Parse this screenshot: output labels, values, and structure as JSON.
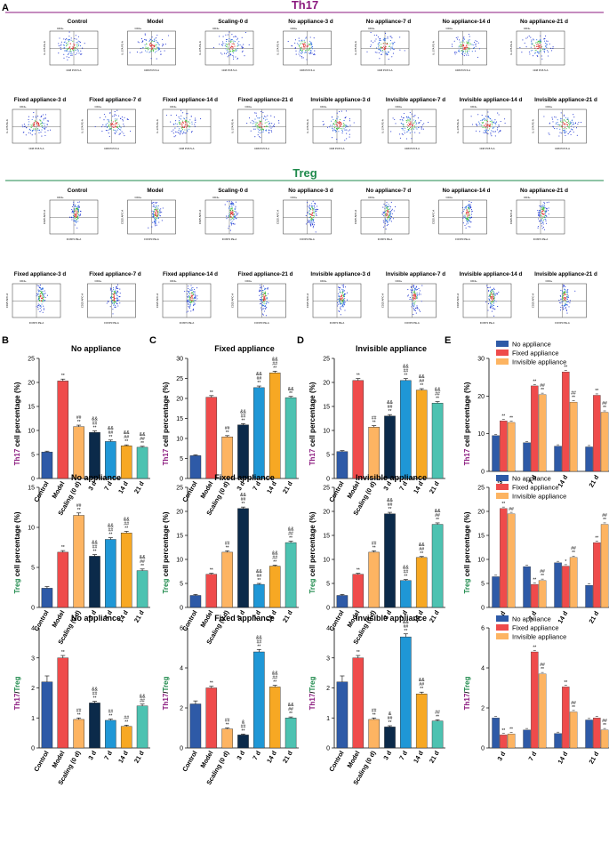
{
  "figure": {
    "panel_letters": [
      "A",
      "B",
      "C",
      "D",
      "E"
    ],
    "flow_sections": [
      {
        "title": "Th17",
        "title_color": "#8b1a7f",
        "row1": [
          "Control",
          "Model",
          "Scaling-0 d",
          "No appliance-3 d",
          "No appliance-7 d",
          "No appliance-14 d",
          "No appliance-21 d"
        ],
        "row2": [
          "Fixed appliance-3 d",
          "Fixed appliance-7 d",
          "Fixed appliance-14 d",
          "Fixed appliance-21 d",
          "Invisible appliance-3 d",
          "Invisible appliance-7 d",
          "Invisible appliance-14 d",
          "Invisible appliance-21 d"
        ],
        "gate": "CD4+",
        "xlabel": "CD8 PC5.5-A",
        "ylabel": "IL-17A PE-A"
      },
      {
        "title": "Treg",
        "title_color": "#1f8a4c",
        "row1": [
          "Control",
          "Model",
          "Scaling-0 d",
          "No appliance-3 d",
          "No appliance-7 d",
          "No appliance-14 d",
          "No appliance-21 d"
        ],
        "row2": [
          "Fixed appliance-3 d",
          "Fixed appliance-7 d",
          "Fixed appliance-14 d",
          "Fixed appliance-21 d",
          "Invisible appliance-3 d",
          "Invisible appliance-7 d",
          "Invisible appliance-14 d",
          "Invisible appliance-21 d"
        ],
        "gate": "CD4+",
        "xlabel": "FOXP3 PE-A",
        "ylabel": "CD25 APC-A"
      }
    ],
    "colors": {
      "control": "#2e5aa7",
      "model": "#ef4b4b",
      "scaling": "#fdb462",
      "d3": "#0b2a4a",
      "d7": "#1f97d6",
      "d14": "#f7a823",
      "d21": "#4dc2b1",
      "th17_color": "#8b1a7f",
      "treg_color": "#1f8a4c"
    },
    "categories": [
      "Control",
      "Model",
      "Scaling (0 d)",
      "3 d",
      "7 d",
      "14 d",
      "21 d"
    ],
    "row_ylabels": [
      {
        "prefix": "Th17",
        "suffix": " cell percentage (%)"
      },
      {
        "prefix": "Treg",
        "suffix": " cell percentage (%)"
      },
      {
        "prefix": "Th17",
        "sep": "/",
        "suffix2": "Treg"
      }
    ],
    "legend_E": [
      "No appliance",
      "Fixed appliance",
      "Invisible appliance"
    ]
  },
  "chart_data": [
    {
      "id": "B1",
      "type": "bar",
      "title": "No appliance",
      "ylabel": "Th17 cell percentage (%)",
      "categories": [
        "Control",
        "Model",
        "Scaling (0 d)",
        "3 d",
        "7 d",
        "14 d",
        "21 d"
      ],
      "values": [
        5.5,
        20.3,
        10.8,
        9.6,
        7.7,
        6.8,
        6.5
      ],
      "errors": [
        0.2,
        0.4,
        0.3,
        0.3,
        0.3,
        0.2,
        0.2
      ],
      "ylim": [
        0,
        25
      ],
      "yticks": [
        0,
        5,
        10,
        15,
        20,
        25
      ],
      "annotations": [
        "",
        "**",
        "##\n**",
        "&&\n##\n**",
        "&&\n##\n**",
        "&&\n##\n**",
        "&&\n##\n**"
      ]
    },
    {
      "id": "C1",
      "type": "bar",
      "title": "Fixed appliance",
      "ylabel": "Th17 cell percentage (%)",
      "categories": [
        "Control",
        "Model",
        "Scaling (0 d)",
        "3 d",
        "7 d",
        "14 d",
        "21 d"
      ],
      "values": [
        5.7,
        20.3,
        10.4,
        13.4,
        22.7,
        26.4,
        20.2
      ],
      "errors": [
        0.2,
        0.4,
        0.3,
        0.3,
        0.4,
        0.4,
        0.3
      ],
      "ylim": [
        0,
        30
      ],
      "yticks": [
        0,
        5,
        10,
        15,
        20,
        25,
        30
      ],
      "annotations": [
        "",
        "**",
        "##\n**",
        "&&\n##\n**",
        "&&\n##\n**",
        "&&\n##\n**",
        "&&\n**"
      ]
    },
    {
      "id": "D1",
      "type": "bar",
      "title": "Invisible appliance",
      "ylabel": "Th17 cell percentage (%)",
      "categories": [
        "Control",
        "Model",
        "Scaling (0 d)",
        "3 d",
        "7 d",
        "14 d",
        "21 d"
      ],
      "values": [
        5.6,
        20.4,
        10.7,
        13.0,
        20.4,
        18.4,
        15.7
      ],
      "errors": [
        0.2,
        0.4,
        0.3,
        0.3,
        0.4,
        0.3,
        0.3
      ],
      "ylim": [
        0,
        25
      ],
      "yticks": [
        0,
        5,
        10,
        15,
        20,
        25
      ],
      "annotations": [
        "",
        "**",
        "##\n**",
        "&&\n##\n**",
        "&&\n##\n**",
        "&&\n##\n**",
        "&&\n##\n**"
      ]
    },
    {
      "id": "E1",
      "type": "bar",
      "ylabel": "Th17 cell percentage (%)",
      "categories": [
        "3 d",
        "7 d",
        "14 d",
        "21 d"
      ],
      "series": [
        {
          "name": "No appliance",
          "values": [
            9.5,
            7.6,
            6.7,
            6.5
          ],
          "annotations": [
            "",
            "",
            "",
            ""
          ]
        },
        {
          "name": "Fixed appliance",
          "values": [
            13.4,
            22.7,
            26.4,
            20.2
          ],
          "annotations": [
            "**",
            "**",
            "**",
            "**"
          ]
        },
        {
          "name": "Invisible appliance",
          "values": [
            13.0,
            20.4,
            18.4,
            15.7
          ],
          "annotations": [
            "**",
            "##\n**",
            "##\n**",
            "##\n**"
          ]
        }
      ],
      "ylim": [
        0,
        30
      ],
      "yticks": [
        0,
        10,
        20,
        30
      ]
    },
    {
      "id": "B2",
      "type": "bar",
      "title": "No appliance",
      "ylabel": "Treg cell percentage (%)",
      "categories": [
        "Control",
        "Model",
        "Scaling (0 d)",
        "3 d",
        "7 d",
        "14 d",
        "21 d"
      ],
      "values": [
        2.4,
        6.9,
        11.5,
        6.4,
        8.5,
        9.3,
        4.6
      ],
      "errors": [
        0.2,
        0.2,
        0.3,
        0.2,
        0.2,
        0.2,
        0.2
      ],
      "ylim": [
        0,
        15
      ],
      "yticks": [
        0,
        5,
        10,
        15
      ],
      "annotations": [
        "",
        "**",
        "##\n**",
        "&&\n##\n**",
        "&&\n##\n**",
        "&&\n##\n**",
        "&&\n##\n**"
      ]
    },
    {
      "id": "C2",
      "type": "bar",
      "title": "Fixed appliance",
      "ylabel": "Treg cell percentage (%)",
      "categories": [
        "Control",
        "Model",
        "Scaling (0 d)",
        "3 d",
        "7 d",
        "14 d",
        "21 d"
      ],
      "values": [
        2.5,
        6.9,
        11.5,
        20.6,
        4.8,
        8.6,
        13.5
      ],
      "errors": [
        0.2,
        0.2,
        0.3,
        0.3,
        0.2,
        0.2,
        0.3
      ],
      "ylim": [
        0,
        25
      ],
      "yticks": [
        0,
        5,
        10,
        15,
        20,
        25
      ],
      "annotations": [
        "",
        "**",
        "##\n**",
        "&&\n##\n**",
        "&&\n##\n**",
        "&&\n##\n**",
        "&&\n##\n**"
      ]
    },
    {
      "id": "D2",
      "type": "bar",
      "title": "Invisible appliance",
      "ylabel": "Treg cell percentage (%)",
      "categories": [
        "Control",
        "Model",
        "Scaling (0 d)",
        "3 d",
        "7 d",
        "14 d",
        "21 d"
      ],
      "values": [
        2.5,
        6.9,
        11.5,
        19.5,
        5.6,
        10.4,
        17.3
      ],
      "errors": [
        0.2,
        0.2,
        0.3,
        0.3,
        0.2,
        0.2,
        0.3
      ],
      "ylim": [
        0,
        25
      ],
      "yticks": [
        0,
        5,
        10,
        15,
        20,
        25
      ],
      "annotations": [
        "",
        "**",
        "##\n**",
        "&&\n##\n**",
        "&&\n##\n**",
        "&&\n##\n**",
        "&&\n##\n**"
      ]
    },
    {
      "id": "E2",
      "type": "bar",
      "ylabel": "Treg cell percentage (%)",
      "categories": [
        "3 d",
        "7 d",
        "14 d",
        "21 d"
      ],
      "series": [
        {
          "name": "No appliance",
          "values": [
            6.4,
            8.5,
            9.3,
            4.6
          ],
          "annotations": [
            "",
            "",
            "",
            ""
          ]
        },
        {
          "name": "Fixed appliance",
          "values": [
            20.6,
            4.8,
            8.6,
            13.5
          ],
          "annotations": [
            "**",
            "**",
            "*",
            "**"
          ]
        },
        {
          "name": "Invisible appliance",
          "values": [
            19.5,
            5.6,
            10.4,
            17.3
          ],
          "annotations": [
            "##",
            "##\n**",
            "##\n**",
            "##\n**"
          ]
        }
      ],
      "ylim": [
        0,
        25
      ],
      "yticks": [
        0,
        5,
        10,
        15,
        20,
        25
      ]
    },
    {
      "id": "B3",
      "type": "bar",
      "title": "No appliance",
      "ylabel": "Th17/Treg",
      "categories": [
        "Control",
        "Model",
        "Scaling (0 d)",
        "3 d",
        "7 d",
        "14 d",
        "21 d"
      ],
      "values": [
        2.2,
        3.0,
        0.95,
        1.5,
        0.92,
        0.72,
        1.4
      ],
      "errors": [
        0.2,
        0.08,
        0.05,
        0.05,
        0.04,
        0.04,
        0.06
      ],
      "ylim": [
        0,
        4
      ],
      "yticks": [
        0,
        1,
        2,
        3,
        4
      ],
      "annotations": [
        "",
        "**",
        "##\n**",
        "&&\n##\n**",
        "##\n**",
        "##\n**",
        "&&\n##"
      ]
    },
    {
      "id": "C3",
      "type": "bar",
      "title": "Fixed appliance",
      "ylabel": "Th17/Treg",
      "categories": [
        "Control",
        "Model",
        "Scaling (0 d)",
        "3 d",
        "7 d",
        "14 d",
        "21 d"
      ],
      "values": [
        2.2,
        3.0,
        0.95,
        0.65,
        4.8,
        3.05,
        1.5
      ],
      "errors": [
        0.15,
        0.08,
        0.05,
        0.04,
        0.12,
        0.08,
        0.05
      ],
      "ylim": [
        0,
        6
      ],
      "yticks": [
        0,
        2,
        4,
        6
      ],
      "annotations": [
        "",
        "**",
        "##\n**",
        "&\n##\n**",
        "&&\n##\n**",
        "&&\n##\n**",
        "&&\n##\n**"
      ]
    },
    {
      "id": "D3",
      "type": "bar",
      "title": "Invisible appliance",
      "ylabel": "Th17/Treg",
      "categories": [
        "Control",
        "Model",
        "Scaling (0 d)",
        "3 d",
        "7 d",
        "14 d",
        "21 d"
      ],
      "values": [
        2.2,
        3.0,
        0.95,
        0.7,
        3.7,
        1.8,
        0.9
      ],
      "errors": [
        0.2,
        0.08,
        0.05,
        0.04,
        0.1,
        0.06,
        0.04
      ],
      "ylim": [
        0,
        4
      ],
      "yticks": [
        0,
        1,
        2,
        3,
        4
      ],
      "annotations": [
        "",
        "**",
        "##\n**",
        "&\n##\n**",
        "&&\n##\n**",
        "&&\n##\n**",
        "##\n**"
      ]
    },
    {
      "id": "E3",
      "type": "bar",
      "ylabel": "Th17/Treg",
      "categories": [
        "3 d",
        "7 d",
        "14 d",
        "21 d"
      ],
      "series": [
        {
          "name": "No appliance",
          "values": [
            1.5,
            0.9,
            0.72,
            1.4
          ],
          "annotations": [
            "",
            "",
            "",
            ""
          ]
        },
        {
          "name": "Fixed appliance",
          "values": [
            0.65,
            4.8,
            3.05,
            1.5
          ],
          "annotations": [
            "**",
            "**",
            "**",
            ""
          ]
        },
        {
          "name": "Invisible appliance",
          "values": [
            0.7,
            3.7,
            1.8,
            0.9
          ],
          "annotations": [
            "**",
            "##\n**",
            "##\n**",
            "##\n**"
          ]
        }
      ],
      "ylim": [
        0,
        6
      ],
      "yticks": [
        0,
        2,
        4,
        6
      ]
    }
  ]
}
